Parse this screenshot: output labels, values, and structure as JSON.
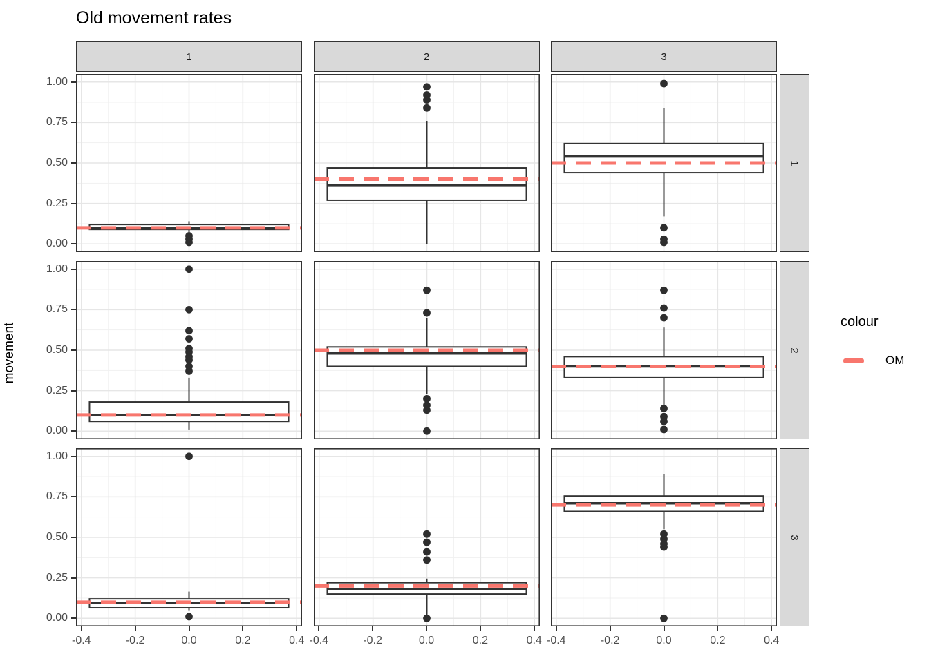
{
  "title": "Old movement rates",
  "axes": {
    "y_title": "movement",
    "y_tick_labels": [
      "1.00",
      "0.75",
      "0.50",
      "0.25",
      "0.00"
    ],
    "x_tick_labels": [
      "-0.4",
      "-0.2",
      "0.0",
      "0.2",
      "0.4"
    ]
  },
  "legend": {
    "title": "colour",
    "items": [
      {
        "label": "OM",
        "color": "#F8766D",
        "style": "dashed"
      }
    ]
  },
  "colors": {
    "om_line": "#F8766D",
    "box_stroke": "#333333",
    "outlier_fill": "#2e2e2e",
    "strip_bg": "#d9d9d9",
    "panel_border": "#333333",
    "grid_major": "#e6e6e6",
    "grid_minor": "#f1f1f1",
    "axis_text": "#4d4d4d",
    "tick_mark": "#333333"
  },
  "chart_data": {
    "type": "boxplot",
    "title": "Old movement rates",
    "ylabel": "movement",
    "xlabel": "",
    "facet_cols": [
      "1",
      "2",
      "3"
    ],
    "facet_rows": [
      "1",
      "2",
      "3"
    ],
    "x_ticks": [
      -0.4,
      -0.2,
      0.0,
      0.2,
      0.4
    ],
    "y_ticks": [
      0.0,
      0.25,
      0.5,
      0.75,
      1.0
    ],
    "xlim": [
      -0.42,
      0.42
    ],
    "ylim": [
      -0.05,
      1.05
    ],
    "grid": true,
    "legend_position": "right",
    "legend_title": "colour",
    "series_name": "OM",
    "box_halfwidth": 0.37,
    "panels": [
      {
        "col": "1",
        "row": "1",
        "om_line": 0.1,
        "box": {
          "whisker_low": 0.07,
          "q1": 0.09,
          "median": 0.1,
          "q3": 0.12,
          "whisker_high": 0.14
        },
        "outliers_high": [],
        "outliers_low": [
          0.05,
          0.03,
          0.01
        ]
      },
      {
        "col": "2",
        "row": "1",
        "om_line": 0.4,
        "box": {
          "whisker_low": 0.0,
          "q1": 0.27,
          "median": 0.36,
          "q3": 0.47,
          "whisker_high": 0.76
        },
        "outliers_high": [
          0.97,
          0.92,
          0.89,
          0.84
        ],
        "outliers_low": []
      },
      {
        "col": "3",
        "row": "1",
        "om_line": 0.5,
        "box": {
          "whisker_low": 0.17,
          "q1": 0.44,
          "median": 0.54,
          "q3": 0.62,
          "whisker_high": 0.84
        },
        "outliers_high": [
          0.99
        ],
        "outliers_low": [
          0.1,
          0.03,
          0.01
        ]
      },
      {
        "col": "1",
        "row": "2",
        "om_line": 0.1,
        "box": {
          "whisker_low": 0.01,
          "q1": 0.06,
          "median": 0.1,
          "q3": 0.18,
          "whisker_high": 0.33
        },
        "outliers_high": [
          1.0,
          0.75,
          0.62,
          0.57,
          0.51,
          0.49,
          0.46,
          0.44,
          0.4,
          0.37
        ],
        "outliers_low": []
      },
      {
        "col": "2",
        "row": "2",
        "om_line": 0.5,
        "box": {
          "whisker_low": 0.23,
          "q1": 0.4,
          "median": 0.48,
          "q3": 0.52,
          "whisker_high": 0.7
        },
        "outliers_high": [
          0.87,
          0.73
        ],
        "outliers_low": [
          0.2,
          0.16,
          0.13,
          0.0
        ]
      },
      {
        "col": "3",
        "row": "2",
        "om_line": 0.4,
        "box": {
          "whisker_low": 0.16,
          "q1": 0.33,
          "median": 0.4,
          "q3": 0.46,
          "whisker_high": 0.64
        },
        "outliers_high": [
          0.87,
          0.76,
          0.7
        ],
        "outliers_low": [
          0.14,
          0.09,
          0.06,
          0.01
        ]
      },
      {
        "col": "1",
        "row": "3",
        "om_line": 0.1,
        "box": {
          "whisker_low": 0.05,
          "q1": 0.065,
          "median": 0.095,
          "q3": 0.12,
          "whisker_high": 0.165
        },
        "outliers_high": [
          1.0
        ],
        "outliers_low": [
          0.01
        ]
      },
      {
        "col": "2",
        "row": "3",
        "om_line": 0.2,
        "box": {
          "whisker_low": 0.02,
          "q1": 0.15,
          "median": 0.18,
          "q3": 0.22,
          "whisker_high": 0.245
        },
        "outliers_high": [
          0.52,
          0.47,
          0.41,
          0.36
        ],
        "outliers_low": [
          0.0
        ]
      },
      {
        "col": "3",
        "row": "3",
        "om_line": 0.7,
        "box": {
          "whisker_low": 0.55,
          "q1": 0.66,
          "median": 0.71,
          "q3": 0.755,
          "whisker_high": 0.89
        },
        "outliers_high": [],
        "outliers_low": [
          0.52,
          0.49,
          0.46,
          0.44,
          0.0
        ]
      }
    ]
  }
}
